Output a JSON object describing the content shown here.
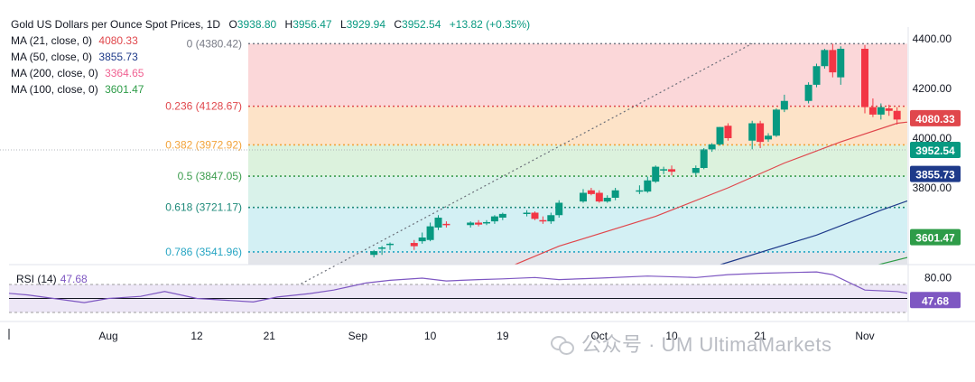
{
  "header": {
    "title": "Gold US Dollars per Ounce Spot Prices, 1D",
    "open_key": "O",
    "open": "3938.80",
    "high_key": "H",
    "high": "3956.47",
    "low_key": "L",
    "low": "3929.94",
    "close_key": "C",
    "close": "3952.54",
    "change": "+13.82 (+0.35%)"
  },
  "ma_legend": [
    {
      "label": "MA (21, close, 0)",
      "value": "4080.33",
      "color": "#e0474c"
    },
    {
      "label": "MA (50, close, 0)",
      "value": "3855.73",
      "color": "#1e3a8a"
    },
    {
      "label": "MA (200, close, 0)",
      "value": "3364.65",
      "color": "#f06292"
    },
    {
      "label": "MA (100, close, 0)",
      "value": "3601.47",
      "color": "#2e9c48"
    }
  ],
  "rsi_legend": {
    "label": "RSI (14)",
    "value": "47.68"
  },
  "watermark": "公众号 · UM UltimaMarkets",
  "chart_data": {
    "type": "candlestick",
    "title": "Gold US Dollars per Ounce Spot Prices, 1D",
    "price_axis": {
      "min": 3300,
      "max": 4450,
      "ticks": [
        3800,
        4000,
        4200,
        4400
      ],
      "tick_labels": [
        "3800.00",
        "4000.00",
        "4200.00",
        "4400.00"
      ]
    },
    "time_axis": {
      "labels": [
        {
          "text": "Aug",
          "date": "2025-08-01"
        },
        {
          "text": "12",
          "date": "2025-08-12"
        },
        {
          "text": "21",
          "date": "2025-08-21"
        },
        {
          "text": "Sep",
          "date": "2025-09-01"
        },
        {
          "text": "10",
          "date": "2025-09-10"
        },
        {
          "text": "19",
          "date": "2025-09-19"
        },
        {
          "text": "Oct",
          "date": "2025-10-01"
        },
        {
          "text": "10",
          "date": "2025-10-10"
        },
        {
          "text": "21",
          "date": "2025-10-21"
        },
        {
          "text": "Nov",
          "date": "2025-11-03"
        }
      ]
    },
    "fibonacci": [
      {
        "level": "0",
        "price": 4380.42,
        "label": "0 (4380.42)",
        "color": "#787b86",
        "fill": "#fbd7d9"
      },
      {
        "level": "0.236",
        "price": 4128.67,
        "label": "0.236 (4128.67)",
        "color": "#e0474c",
        "fill": "#fde3c8"
      },
      {
        "level": "0.382",
        "price": 3972.92,
        "label": "0.382 (3972.92)",
        "color": "#f2a33a",
        "fill": "#dcf2dd"
      },
      {
        "level": "0.5",
        "price": 3847.05,
        "label": "0.5 (3847.05)",
        "color": "#3c9d4e",
        "fill": "#d9f2ea"
      },
      {
        "level": "0.618",
        "price": 3721.17,
        "label": "0.618 (3721.17)",
        "color": "#1f8a7a",
        "fill": "#d3f0f4"
      },
      {
        "level": "0.786",
        "price": 3541.96,
        "label": "0.786 (3541.96)",
        "color": "#26a5c3",
        "fill": "#e3e5ea"
      }
    ],
    "trendline": {
      "from": {
        "date": "2025-08-19",
        "price": 3311
      },
      "to": {
        "date": "2025-10-20",
        "price": 4381
      }
    },
    "candles": [
      {
        "date": "2025-09-03",
        "o": 3530,
        "h": 3550,
        "l": 3520,
        "c": 3545
      },
      {
        "date": "2025-09-04",
        "o": 3555,
        "h": 3566,
        "l": 3530,
        "c": 3560
      },
      {
        "date": "2025-09-05",
        "o": 3570,
        "h": 3580,
        "l": 3550,
        "c": 3575
      },
      {
        "date": "2025-09-08",
        "o": 3578,
        "h": 3590,
        "l": 3550,
        "c": 3565
      },
      {
        "date": "2025-09-09",
        "o": 3585,
        "h": 3620,
        "l": 3575,
        "c": 3600
      },
      {
        "date": "2025-09-10",
        "o": 3590,
        "h": 3660,
        "l": 3585,
        "c": 3645
      },
      {
        "date": "2025-09-11",
        "o": 3640,
        "h": 3690,
        "l": 3630,
        "c": 3680
      },
      {
        "date": "2025-09-12",
        "o": 3655,
        "h": 3665,
        "l": 3640,
        "c": 3650
      },
      {
        "date": "2025-09-15",
        "o": 3650,
        "h": 3665,
        "l": 3640,
        "c": 3660
      },
      {
        "date": "2025-09-16",
        "o": 3660,
        "h": 3670,
        "l": 3645,
        "c": 3652
      },
      {
        "date": "2025-09-17",
        "o": 3658,
        "h": 3670,
        "l": 3650,
        "c": 3662
      },
      {
        "date": "2025-09-18",
        "o": 3665,
        "h": 3690,
        "l": 3655,
        "c": 3685
      },
      {
        "date": "2025-09-19",
        "o": 3680,
        "h": 3700,
        "l": 3670,
        "c": 3695
      },
      {
        "date": "2025-09-22",
        "o": 3695,
        "h": 3710,
        "l": 3685,
        "c": 3700
      },
      {
        "date": "2025-09-23",
        "o": 3700,
        "h": 3705,
        "l": 3670,
        "c": 3675
      },
      {
        "date": "2025-09-24",
        "o": 3670,
        "h": 3685,
        "l": 3655,
        "c": 3665
      },
      {
        "date": "2025-09-25",
        "o": 3665,
        "h": 3700,
        "l": 3655,
        "c": 3690
      },
      {
        "date": "2025-09-26",
        "o": 3690,
        "h": 3750,
        "l": 3680,
        "c": 3740
      },
      {
        "date": "2025-09-29",
        "o": 3745,
        "h": 3795,
        "l": 3740,
        "c": 3780
      },
      {
        "date": "2025-09-30",
        "o": 3790,
        "h": 3800,
        "l": 3770,
        "c": 3775
      },
      {
        "date": "2025-10-01",
        "o": 3780,
        "h": 3790,
        "l": 3740,
        "c": 3745
      },
      {
        "date": "2025-10-02",
        "o": 3745,
        "h": 3770,
        "l": 3740,
        "c": 3760
      },
      {
        "date": "2025-10-03",
        "o": 3760,
        "h": 3800,
        "l": 3750,
        "c": 3790
      },
      {
        "date": "2025-10-06",
        "o": 3790,
        "h": 3810,
        "l": 3775,
        "c": 3790
      },
      {
        "date": "2025-10-07",
        "o": 3785,
        "h": 3845,
        "l": 3780,
        "c": 3830
      },
      {
        "date": "2025-10-08",
        "o": 3825,
        "h": 3890,
        "l": 3820,
        "c": 3885
      },
      {
        "date": "2025-10-09",
        "o": 3870,
        "h": 3885,
        "l": 3855,
        "c": 3875
      },
      {
        "date": "2025-10-10",
        "o": 3875,
        "h": 3890,
        "l": 3850,
        "c": 3865
      },
      {
        "date": "2025-10-13",
        "o": 3860,
        "h": 3890,
        "l": 3850,
        "c": 3880
      },
      {
        "date": "2025-10-14",
        "o": 3880,
        "h": 3960,
        "l": 3875,
        "c": 3955
      },
      {
        "date": "2025-10-15",
        "o": 3955,
        "h": 3980,
        "l": 3945,
        "c": 3975
      },
      {
        "date": "2025-10-16",
        "o": 3975,
        "h": 4045,
        "l": 3970,
        "c": 4045
      },
      {
        "date": "2025-10-17",
        "o": 4050,
        "h": 4060,
        "l": 3990,
        "c": 4000
      },
      {
        "date": "2025-10-20",
        "o": 3990,
        "h": 4070,
        "l": 3955,
        "c": 4060
      },
      {
        "date": "2025-10-21",
        "o": 4060,
        "h": 4070,
        "l": 3960,
        "c": 3985
      },
      {
        "date": "2025-10-22",
        "o": 3995,
        "h": 4020,
        "l": 3985,
        "c": 4010
      },
      {
        "date": "2025-10-23",
        "o": 4010,
        "h": 4120,
        "l": 4005,
        "c": 4115
      },
      {
        "date": "2025-10-24",
        "o": 4115,
        "h": 4175,
        "l": 4105,
        "c": 4150
      },
      {
        "date": "2025-10-27",
        "o": 4150,
        "h": 4225,
        "l": 4140,
        "c": 4215
      },
      {
        "date": "2025-10-28",
        "o": 4215,
        "h": 4300,
        "l": 4205,
        "c": 4290
      },
      {
        "date": "2025-10-29",
        "o": 4290,
        "h": 4360,
        "l": 4280,
        "c": 4355
      },
      {
        "date": "2025-10-30",
        "o": 4355,
        "h": 4380,
        "l": 4245,
        "c": 4265
      },
      {
        "date": "2025-10-31",
        "o": 4245,
        "h": 4370,
        "l": 4215,
        "c": 4360
      },
      {
        "date": "2025-11-03",
        "o": 4360,
        "h": 4375,
        "l": 4100,
        "c": 4125
      },
      {
        "date": "2025-11-04",
        "o": 4125,
        "h": 4160,
        "l": 4085,
        "c": 4095
      },
      {
        "date": "2025-11-05",
        "o": 4095,
        "h": 4140,
        "l": 4075,
        "c": 4125
      },
      {
        "date": "2025-11-06",
        "o": 4120,
        "h": 4135,
        "l": 4090,
        "c": 4110
      },
      {
        "date": "2025-11-07",
        "o": 4110,
        "h": 4125,
        "l": 4055,
        "c": 4075
      },
      {
        "date": "2025-11-10",
        "o": 4075,
        "h": 4085,
        "l": 3970,
        "c": 3980
      },
      {
        "date": "2025-11-11",
        "o": 3980,
        "h": 4010,
        "l": 3895,
        "c": 3945
      },
      {
        "date": "2025-11-12",
        "o": 3945,
        "h": 4040,
        "l": 3920,
        "c": 3925
      },
      {
        "date": "2025-11-13",
        "o": 3925,
        "h": 4020,
        "l": 3920,
        "c": 4015
      },
      {
        "date": "2025-11-14",
        "o": 4015,
        "h": 4045,
        "l": 3985,
        "c": 3995
      },
      {
        "date": "2025-11-17",
        "o": 3995,
        "h": 4015,
        "l": 3970,
        "c": 4010
      },
      {
        "date": "2025-11-18",
        "o": 4005,
        "h": 4015,
        "l": 3935,
        "c": 3940
      },
      {
        "date": "2025-11-19",
        "o": 3938.8,
        "h": 3956.47,
        "l": 3929.94,
        "c": 3952.54
      }
    ],
    "moving_averages": [
      {
        "name": "MA (21, close, 0)",
        "color": "#e0474c",
        "last": 4080.33,
        "points": [
          {
            "date": "2025-09-05",
            "v": 3300
          },
          {
            "date": "2025-09-16",
            "v": 3430
          },
          {
            "date": "2025-09-26",
            "v": 3565
          },
          {
            "date": "2025-10-08",
            "v": 3685
          },
          {
            "date": "2025-10-17",
            "v": 3800
          },
          {
            "date": "2025-10-24",
            "v": 3900
          },
          {
            "date": "2025-10-31",
            "v": 3985
          },
          {
            "date": "2025-11-07",
            "v": 4060
          },
          {
            "date": "2025-11-13",
            "v": 4083
          },
          {
            "date": "2025-11-19",
            "v": 4080.33
          }
        ]
      },
      {
        "name": "MA (50, close, 0)",
        "color": "#1e3a8a",
        "last": 3855.73,
        "points": [
          {
            "date": "2025-09-23",
            "v": 3300
          },
          {
            "date": "2025-10-06",
            "v": 3395
          },
          {
            "date": "2025-10-17",
            "v": 3500
          },
          {
            "date": "2025-10-28",
            "v": 3610
          },
          {
            "date": "2025-11-05",
            "v": 3710
          },
          {
            "date": "2025-11-12",
            "v": 3790
          },
          {
            "date": "2025-11-19",
            "v": 3855.73
          }
        ]
      },
      {
        "name": "MA (200, close, 0)",
        "color": "#f06292",
        "last": 3364.65,
        "points": []
      },
      {
        "name": "MA (100, close, 0)",
        "color": "#2e9c48",
        "last": 3601.47,
        "points": [
          {
            "date": "2025-10-13",
            "v": 3300
          },
          {
            "date": "2025-10-24",
            "v": 3390
          },
          {
            "date": "2025-11-04",
            "v": 3485
          },
          {
            "date": "2025-11-12",
            "v": 3550
          },
          {
            "date": "2025-11-19",
            "v": 3601.47
          }
        ]
      }
    ],
    "price_labels": [
      {
        "value": "4080.33",
        "color": "#e0474c",
        "price": 4080.33
      },
      {
        "value": "3952.54",
        "color": "#089981",
        "price": 3952.54
      },
      {
        "value": "3855.73",
        "color": "#1e3a8a",
        "price": 3855.73
      },
      {
        "value": "3601.47",
        "color": "#2e9c48",
        "price": 3601.47
      }
    ],
    "rsi": {
      "name": "RSI (14)",
      "color": "#7e57c2",
      "last": 47.68,
      "axis": {
        "min": 0,
        "max": 100,
        "ticks": [
          80
        ],
        "tick_labels": [
          "80.00"
        ]
      },
      "band": [
        30,
        70
      ],
      "mid": 50,
      "last_label": "47.68",
      "points": [
        {
          "date": "2025-07-15",
          "v": 62
        },
        {
          "date": "2025-07-22",
          "v": 55
        },
        {
          "date": "2025-07-29",
          "v": 44
        },
        {
          "date": "2025-08-01",
          "v": 50
        },
        {
          "date": "2025-08-05",
          "v": 53
        },
        {
          "date": "2025-08-08",
          "v": 60
        },
        {
          "date": "2025-08-12",
          "v": 50
        },
        {
          "date": "2025-08-15",
          "v": 48
        },
        {
          "date": "2025-08-19",
          "v": 45
        },
        {
          "date": "2025-08-22",
          "v": 52
        },
        {
          "date": "2025-08-26",
          "v": 57
        },
        {
          "date": "2025-08-29",
          "v": 62
        },
        {
          "date": "2025-09-02",
          "v": 72
        },
        {
          "date": "2025-09-05",
          "v": 76
        },
        {
          "date": "2025-09-09",
          "v": 79
        },
        {
          "date": "2025-09-12",
          "v": 75
        },
        {
          "date": "2025-09-16",
          "v": 77
        },
        {
          "date": "2025-09-19",
          "v": 78
        },
        {
          "date": "2025-09-23",
          "v": 80
        },
        {
          "date": "2025-09-26",
          "v": 77
        },
        {
          "date": "2025-10-01",
          "v": 79
        },
        {
          "date": "2025-10-07",
          "v": 82
        },
        {
          "date": "2025-10-13",
          "v": 80
        },
        {
          "date": "2025-10-17",
          "v": 84
        },
        {
          "date": "2025-10-21",
          "v": 86
        },
        {
          "date": "2025-10-28",
          "v": 88
        },
        {
          "date": "2025-10-30",
          "v": 84
        },
        {
          "date": "2025-11-03",
          "v": 62
        },
        {
          "date": "2025-11-07",
          "v": 60
        },
        {
          "date": "2025-11-11",
          "v": 52
        },
        {
          "date": "2025-11-13",
          "v": 55
        },
        {
          "date": "2025-11-17",
          "v": 53
        },
        {
          "date": "2025-11-19",
          "v": 47.68
        }
      ]
    }
  }
}
